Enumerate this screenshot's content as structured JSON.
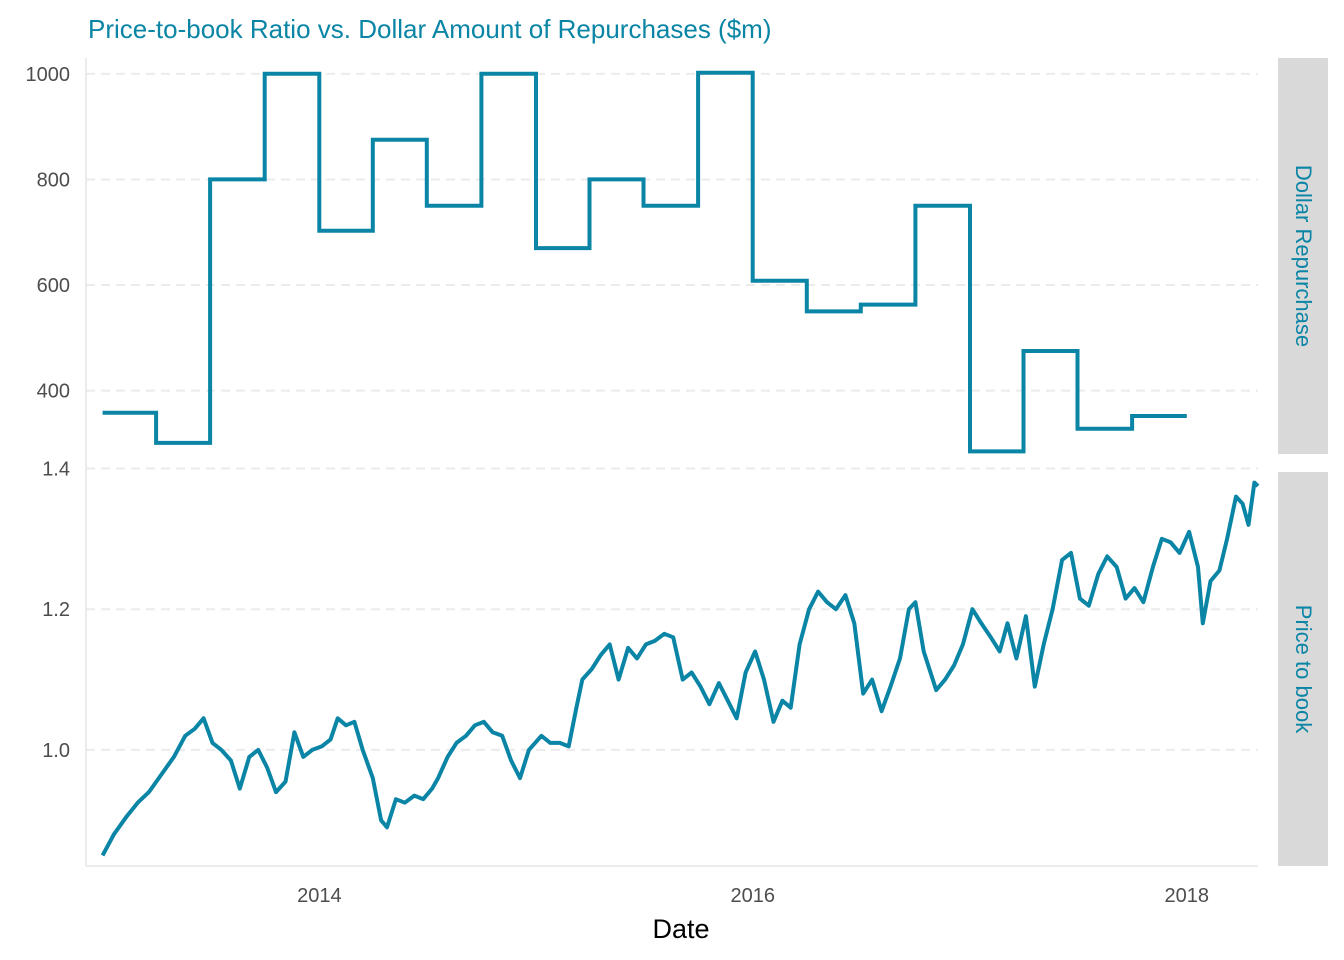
{
  "colors": {
    "series": "#0a85a6",
    "title": "#0a85a6",
    "strip_bg": "#d9d9d9",
    "strip_text": "#0a85a6",
    "grid": "#ebebeb"
  },
  "chart_data": {
    "type": "line",
    "title": "Price-to-book Ratio vs. Dollar Amount of Repurchases ($m)",
    "xlabel": "Date",
    "ylabel": "",
    "x_range": [
      "2012-12-04",
      "2018-05-01"
    ],
    "x_ticks": [
      "2014",
      "2016",
      "2018"
    ],
    "grid": "major horizontal dashed",
    "legend": "none",
    "panels": [
      {
        "strip_label": "Dollar Repurchase",
        "step": true,
        "ylim": [
          280,
          1030
        ],
        "y_ticks": [
          "400",
          "600",
          "800",
          "1000"
        ],
        "x_breaks": [
          "2013-01-01",
          "2013-04-01",
          "2013-07-01",
          "2013-10-01",
          "2014-01-01",
          "2014-04-01",
          "2014-07-01",
          "2014-10-01",
          "2015-01-01",
          "2015-04-01",
          "2015-07-01",
          "2015-10-01",
          "2016-01-01",
          "2016-04-01",
          "2016-07-01",
          "2016-10-01",
          "2017-01-01",
          "2017-04-01",
          "2017-07-01",
          "2017-10-01",
          "2018-01-01"
        ],
        "values": [
          358,
          301,
          800,
          1000,
          703,
          875,
          750,
          1000,
          670,
          800,
          750,
          1002,
          608,
          550,
          563,
          750,
          285,
          475,
          328,
          352
        ]
      },
      {
        "strip_label": "Price to book",
        "ylim": [
          0.835,
          1.395
        ],
        "y_ticks": [
          "1.0",
          "1.2",
          "1.4"
        ],
        "points": [
          [
            "2013-01-01",
            0.85
          ],
          [
            "2013-01-20",
            0.88
          ],
          [
            "2013-02-10",
            0.905
          ],
          [
            "2013-03-01",
            0.925
          ],
          [
            "2013-03-20",
            0.94
          ],
          [
            "2013-04-10",
            0.965
          ],
          [
            "2013-05-01",
            0.99
          ],
          [
            "2013-05-20",
            1.02
          ],
          [
            "2013-06-05",
            1.03
          ],
          [
            "2013-06-20",
            1.045
          ],
          [
            "2013-07-05",
            1.01
          ],
          [
            "2013-07-20",
            1.0
          ],
          [
            "2013-08-05",
            0.985
          ],
          [
            "2013-08-20",
            0.945
          ],
          [
            "2013-09-05",
            0.99
          ],
          [
            "2013-09-20",
            1.0
          ],
          [
            "2013-10-05",
            0.975
          ],
          [
            "2013-10-20",
            0.94
          ],
          [
            "2013-11-05",
            0.955
          ],
          [
            "2013-11-20",
            1.025
          ],
          [
            "2013-12-05",
            0.99
          ],
          [
            "2013-12-20",
            1.0
          ],
          [
            "2014-01-05",
            1.005
          ],
          [
            "2014-01-20",
            1.015
          ],
          [
            "2014-02-01",
            1.045
          ],
          [
            "2014-02-15",
            1.035
          ],
          [
            "2014-03-01",
            1.04
          ],
          [
            "2014-03-15",
            1.0
          ],
          [
            "2014-04-01",
            0.96
          ],
          [
            "2014-04-15",
            0.9
          ],
          [
            "2014-04-25",
            0.89
          ],
          [
            "2014-05-10",
            0.93
          ],
          [
            "2014-05-25",
            0.925
          ],
          [
            "2014-06-10",
            0.935
          ],
          [
            "2014-06-25",
            0.93
          ],
          [
            "2014-07-10",
            0.945
          ],
          [
            "2014-07-20",
            0.96
          ],
          [
            "2014-08-05",
            0.99
          ],
          [
            "2014-08-20",
            1.01
          ],
          [
            "2014-09-05",
            1.02
          ],
          [
            "2014-09-20",
            1.035
          ],
          [
            "2014-10-05",
            1.04
          ],
          [
            "2014-10-20",
            1.025
          ],
          [
            "2014-11-05",
            1.02
          ],
          [
            "2014-11-20",
            0.985
          ],
          [
            "2014-12-05",
            0.96
          ],
          [
            "2014-12-20",
            1.0
          ],
          [
            "2015-01-10",
            1.02
          ],
          [
            "2015-01-25",
            1.01
          ],
          [
            "2015-02-10",
            1.01
          ],
          [
            "2015-02-25",
            1.005
          ],
          [
            "2015-03-10",
            1.06
          ],
          [
            "2015-03-20",
            1.1
          ],
          [
            "2015-04-05",
            1.115
          ],
          [
            "2015-04-20",
            1.135
          ],
          [
            "2015-05-05",
            1.15
          ],
          [
            "2015-05-20",
            1.1
          ],
          [
            "2015-06-05",
            1.145
          ],
          [
            "2015-06-20",
            1.13
          ],
          [
            "2015-07-05",
            1.15
          ],
          [
            "2015-07-20",
            1.155
          ],
          [
            "2015-08-05",
            1.165
          ],
          [
            "2015-08-20",
            1.16
          ],
          [
            "2015-09-05",
            1.1
          ],
          [
            "2015-09-20",
            1.11
          ],
          [
            "2015-10-05",
            1.09
          ],
          [
            "2015-10-20",
            1.065
          ],
          [
            "2015-11-05",
            1.095
          ],
          [
            "2015-11-20",
            1.07
          ],
          [
            "2015-12-05",
            1.045
          ],
          [
            "2015-12-20",
            1.11
          ],
          [
            "2016-01-05",
            1.14
          ],
          [
            "2016-01-20",
            1.1
          ],
          [
            "2016-02-05",
            1.04
          ],
          [
            "2016-02-20",
            1.07
          ],
          [
            "2016-03-05",
            1.06
          ],
          [
            "2016-03-20",
            1.15
          ],
          [
            "2016-04-05",
            1.2
          ],
          [
            "2016-04-20",
            1.225
          ],
          [
            "2016-05-05",
            1.21
          ],
          [
            "2016-05-20",
            1.2
          ],
          [
            "2016-06-05",
            1.22
          ],
          [
            "2016-06-20",
            1.18
          ],
          [
            "2016-07-05",
            1.08
          ],
          [
            "2016-07-20",
            1.1
          ],
          [
            "2016-08-05",
            1.055
          ],
          [
            "2016-08-20",
            1.09
          ],
          [
            "2016-09-05",
            1.13
          ],
          [
            "2016-09-20",
            1.2
          ],
          [
            "2016-10-01",
            1.21
          ],
          [
            "2016-10-15",
            1.14
          ],
          [
            "2016-11-05",
            1.085
          ],
          [
            "2016-11-20",
            1.1
          ],
          [
            "2016-12-05",
            1.12
          ],
          [
            "2016-12-20",
            1.15
          ],
          [
            "2017-01-05",
            1.2
          ],
          [
            "2017-01-20",
            1.18
          ],
          [
            "2017-02-05",
            1.16
          ],
          [
            "2017-02-20",
            1.14
          ],
          [
            "2017-03-05",
            1.18
          ],
          [
            "2017-03-20",
            1.13
          ],
          [
            "2017-04-05",
            1.19
          ],
          [
            "2017-04-20",
            1.09
          ],
          [
            "2017-05-05",
            1.15
          ],
          [
            "2017-05-20",
            1.2
          ],
          [
            "2017-06-05",
            1.27
          ],
          [
            "2017-06-20",
            1.28
          ],
          [
            "2017-07-05",
            1.215
          ],
          [
            "2017-07-20",
            1.205
          ],
          [
            "2017-08-05",
            1.25
          ],
          [
            "2017-08-20",
            1.275
          ],
          [
            "2017-09-05",
            1.26
          ],
          [
            "2017-09-20",
            1.215
          ],
          [
            "2017-10-05",
            1.23
          ],
          [
            "2017-10-20",
            1.21
          ],
          [
            "2017-11-05",
            1.26
          ],
          [
            "2017-11-20",
            1.3
          ],
          [
            "2017-12-05",
            1.295
          ],
          [
            "2017-12-20",
            1.28
          ],
          [
            "2018-01-05",
            1.31
          ],
          [
            "2018-01-20",
            1.26
          ],
          [
            "2018-01-28",
            1.18
          ],
          [
            "2018-02-10",
            1.24
          ],
          [
            "2018-02-25",
            1.255
          ],
          [
            "2018-03-10",
            1.3
          ],
          [
            "2018-03-25",
            1.36
          ],
          [
            "2018-04-05",
            1.35
          ],
          [
            "2018-04-15",
            1.32
          ],
          [
            "2018-04-25",
            1.38
          ],
          [
            "2018-05-01",
            1.375
          ]
        ]
      }
    ]
  }
}
